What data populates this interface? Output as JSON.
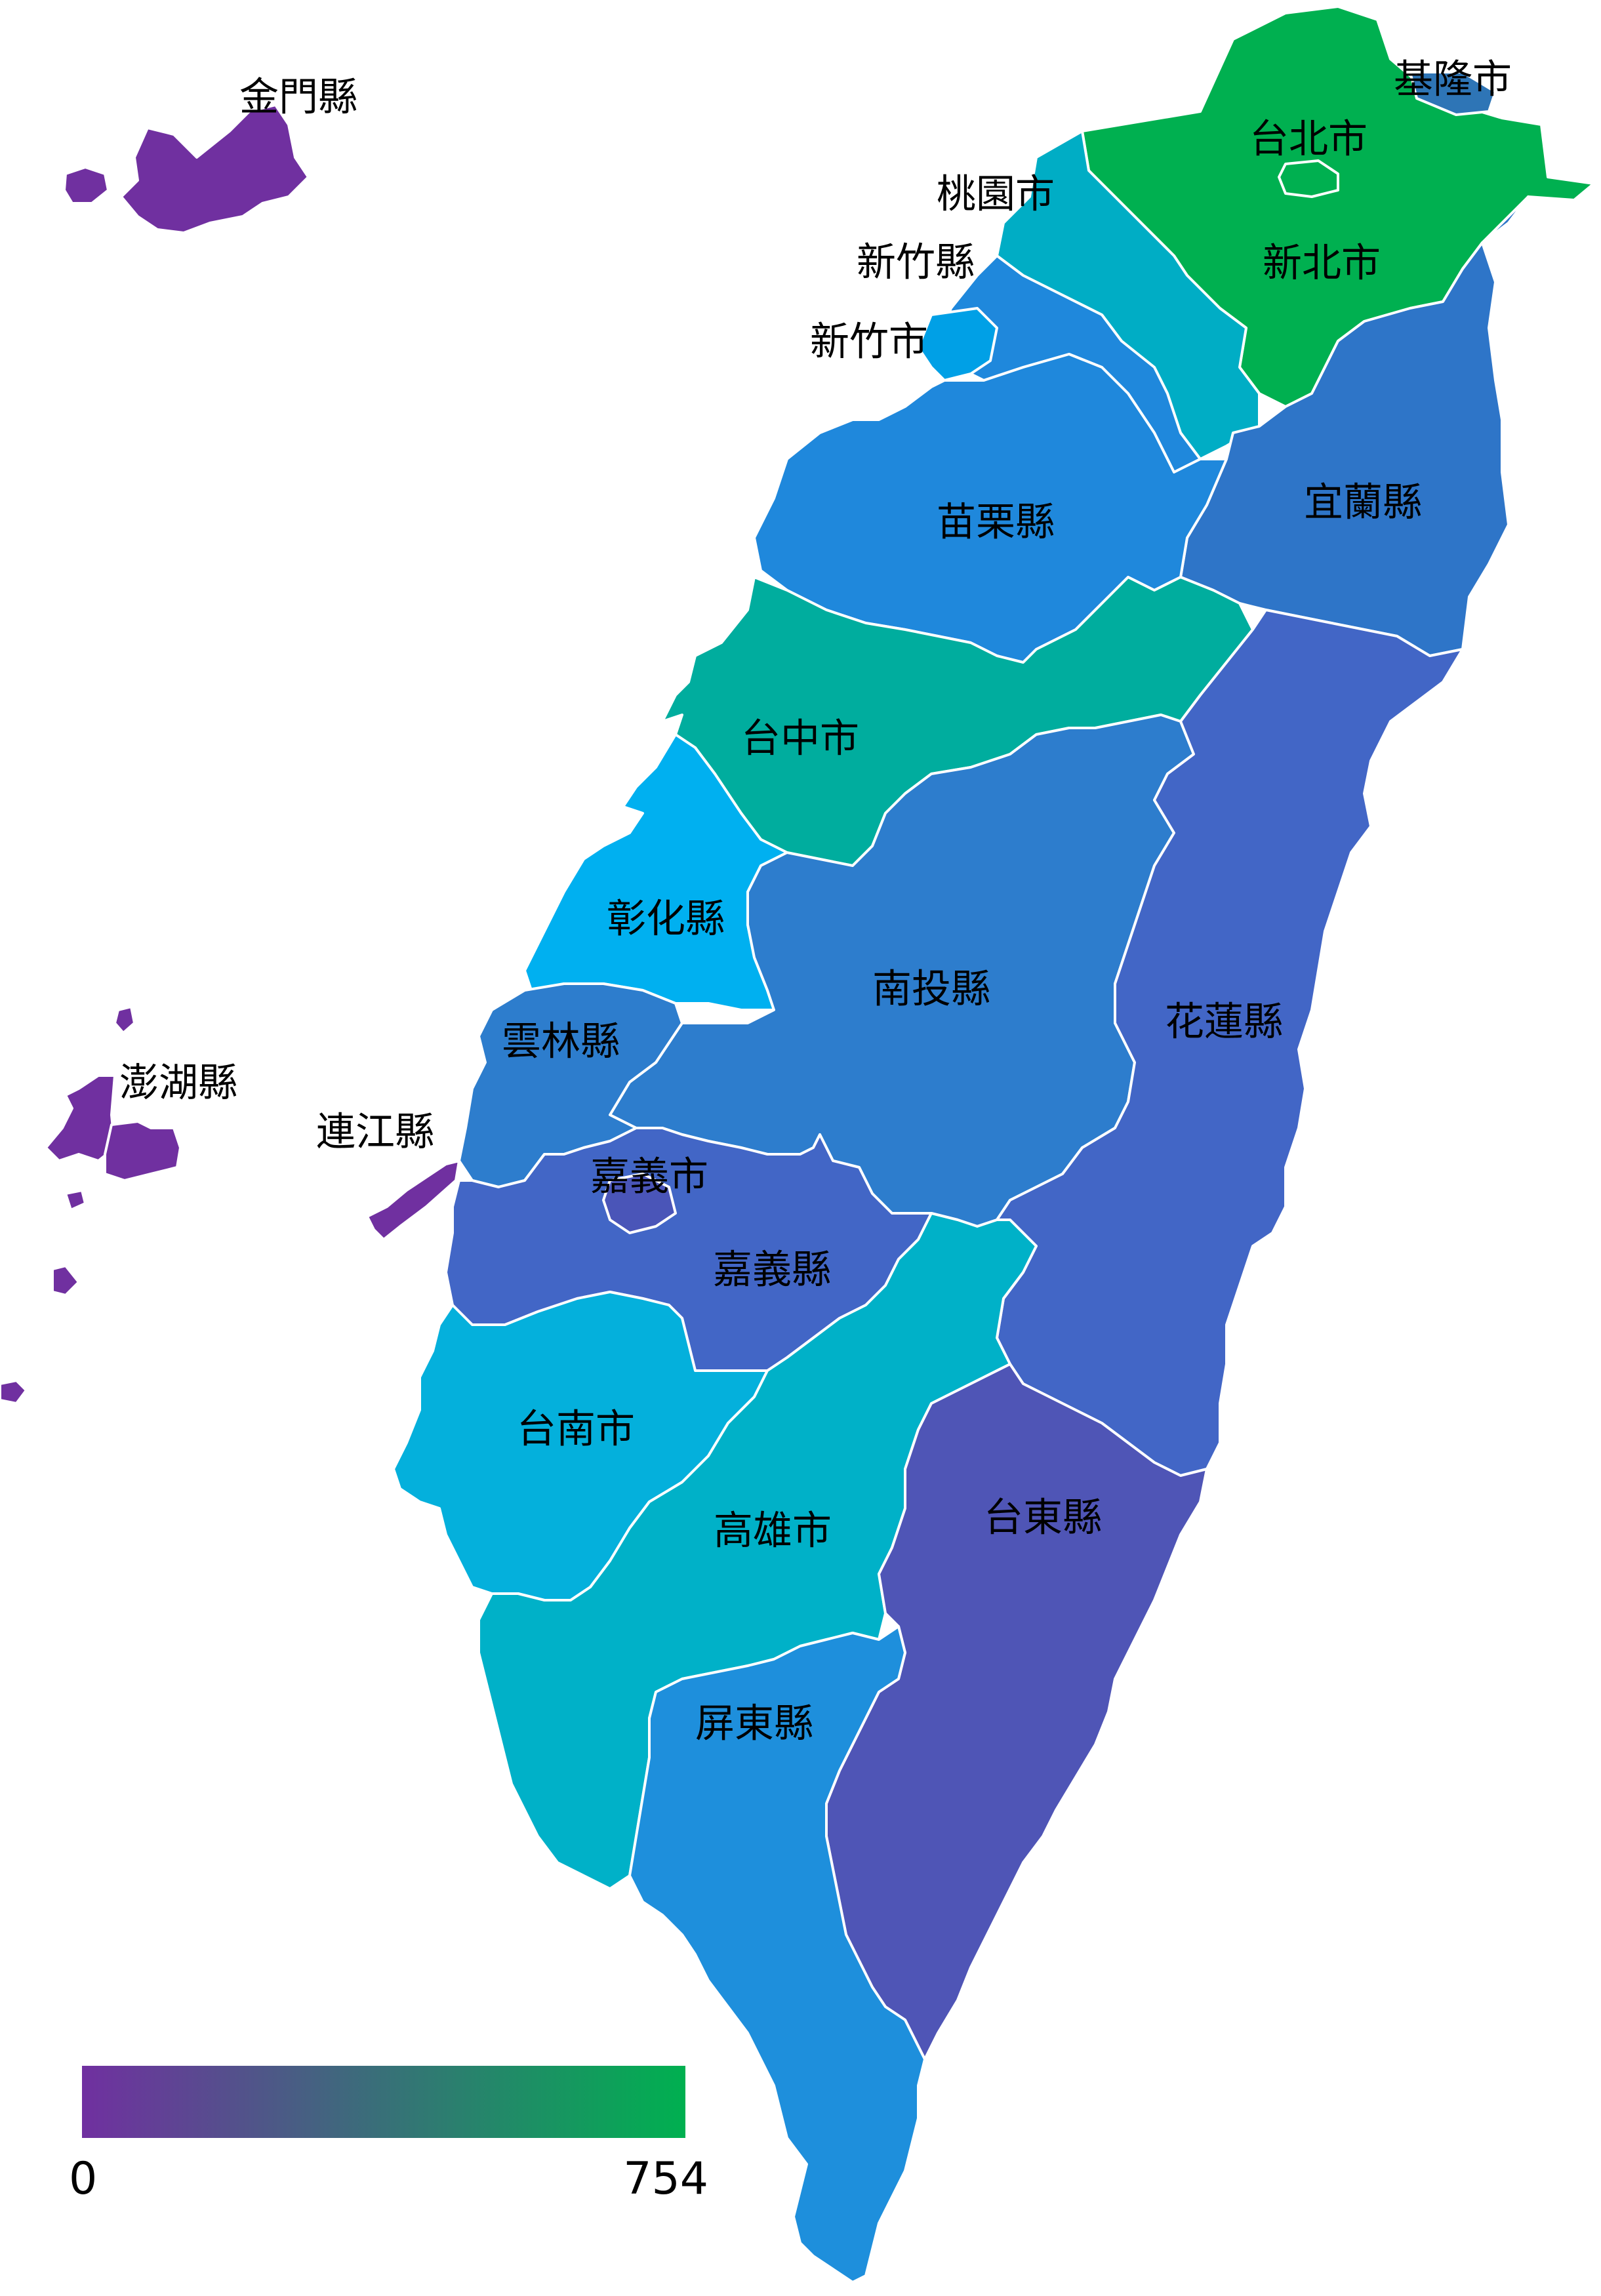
{
  "legend": {
    "min_label": "0",
    "max_label": "754",
    "color_low": "#7030a0",
    "color_high": "#00b050"
  },
  "regions": [
    {
      "id": "kinmen",
      "label": "金門縣",
      "color": "#7030a0"
    },
    {
      "id": "keelung",
      "label": "基隆市",
      "color": "#2e75b6"
    },
    {
      "id": "taipei",
      "label": "台北市",
      "color": "#00b050"
    },
    {
      "id": "taoyuan",
      "label": "桃園市",
      "color": "#00adc5"
    },
    {
      "id": "newtaipei",
      "label": "新北市",
      "color": "#00b050"
    },
    {
      "id": "hsinchu-county",
      "label": "新竹縣",
      "color": "#1f88dc"
    },
    {
      "id": "hsinchu-city",
      "label": "新竹市",
      "color": "#00a0e6"
    },
    {
      "id": "miaoli",
      "label": "苗栗縣",
      "color": "#1f88dc"
    },
    {
      "id": "yilan",
      "label": "宜蘭縣",
      "color": "#2e75c8"
    },
    {
      "id": "taichung",
      "label": "台中市",
      "color": "#00ad9e"
    },
    {
      "id": "changhua",
      "label": "彰化縣",
      "color": "#00b0f0"
    },
    {
      "id": "nantou",
      "label": "南投縣",
      "color": "#2d7dcd"
    },
    {
      "id": "hualien",
      "label": "花蓮縣",
      "color": "#4266c6"
    },
    {
      "id": "yunlin",
      "label": "雲林縣",
      "color": "#2d7dcd"
    },
    {
      "id": "penghu",
      "label": "澎湖縣",
      "color": "#7030a0"
    },
    {
      "id": "lienchiang",
      "label": "連江縣",
      "color": "#7030a0"
    },
    {
      "id": "chiayi-city",
      "label": "嘉義市",
      "color": "#4a55b8"
    },
    {
      "id": "chiayi-county",
      "label": "嘉義縣",
      "color": "#4266c6"
    },
    {
      "id": "tainan",
      "label": "台南市",
      "color": "#04b0dc"
    },
    {
      "id": "kaohsiung",
      "label": "高雄市",
      "color": "#00b1c8"
    },
    {
      "id": "taitung",
      "label": "台東縣",
      "color": "#4f55b6"
    },
    {
      "id": "pingtung",
      "label": "屏東縣",
      "color": "#1e8fdc"
    }
  ]
}
